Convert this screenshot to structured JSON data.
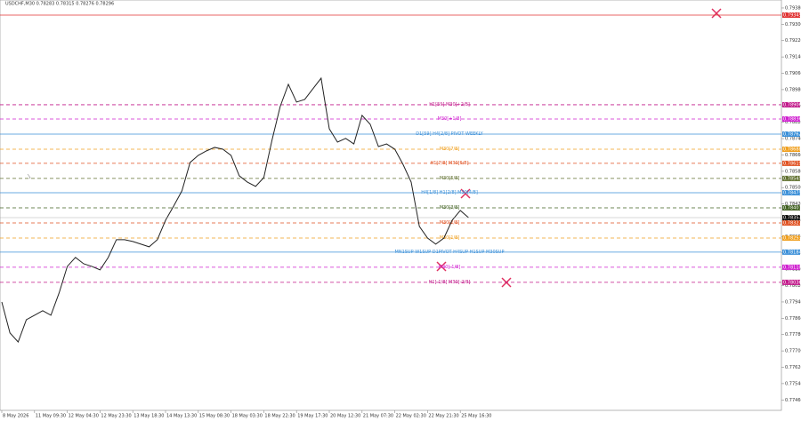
{
  "chart_data": {
    "type": "line",
    "title": "USDCHF,M30  0.78283 0.78315 0.78276 0.78296",
    "categories": [
      "8 May 2026",
      null,
      null,
      null,
      "11 May 09:30",
      null,
      null,
      null,
      "12 May 04:30",
      null,
      null,
      null,
      "12 May 23:30",
      null,
      null,
      null,
      "13 May 18:30",
      null,
      null,
      null,
      "14 May 13:30",
      null,
      null,
      null,
      "15 May 08:30",
      null,
      null,
      null,
      "18 May 03:30",
      null,
      null,
      null,
      "18 May 22:30",
      null,
      null,
      null,
      "19 May 17:30",
      null,
      null,
      null,
      "20 May 12:30",
      null,
      null,
      null,
      "21 May 07:30",
      null,
      null,
      null,
      "22 May 02:30",
      null,
      null,
      null,
      "22 May 21:30",
      null,
      null,
      null,
      "25 May 16:30",
      null
    ],
    "series": [
      {
        "color": "#222222",
        "values": [
          0.7794,
          0.77788,
          0.77744,
          0.77853,
          0.77875,
          0.77897,
          0.77875,
          0.77984,
          0.78114,
          0.78158,
          0.78127,
          0.78114,
          0.78097,
          0.78158,
          0.78245,
          0.78245,
          0.78236,
          0.78223,
          0.7821,
          0.78245,
          0.7834,
          0.7841,
          0.78484,
          0.78623,
          0.78658,
          0.7868,
          0.78697,
          0.78688,
          0.78658,
          0.78558,
          0.78527,
          0.78506,
          0.78549,
          0.78732,
          0.78897,
          0.79006,
          0.78919,
          0.78932,
          0.78984,
          0.79036,
          0.78788,
          0.78723,
          0.78741,
          0.78714,
          0.78854,
          0.7881,
          0.78701,
          0.78714,
          0.78688,
          0.78614,
          0.78527,
          0.7831,
          0.78253,
          0.78223,
          0.78253,
          0.7834,
          0.78388,
          0.78353
        ]
      }
    ],
    "ylim": [
      0.77409,
      0.79419
    ],
    "yticks": [
      {
        "value": 0.7746,
        "label": "0.77460"
      },
      {
        "value": 0.7754,
        "label": "0.77540"
      },
      {
        "value": 0.7762,
        "label": "0.77620"
      },
      {
        "value": 0.777,
        "label": "0.77700"
      },
      {
        "value": 0.7778,
        "label": "0.77780"
      },
      {
        "value": 0.7786,
        "label": "0.77860"
      },
      {
        "value": 0.7794,
        "label": "0.77940"
      },
      {
        "value": 0.7802,
        "label": "0.78020"
      },
      {
        "value": 0.781,
        "label": "0.78100"
      },
      {
        "value": 0.7818,
        "label": "0.78180"
      },
      {
        "value": 0.7826,
        "label": "0.78260"
      },
      {
        "value": 0.7834,
        "label": "0.78340"
      },
      {
        "value": 0.7842,
        "label": "0.78420"
      },
      {
        "value": 0.785,
        "label": "0.78500"
      },
      {
        "value": 0.7858,
        "label": "0.78580"
      },
      {
        "value": 0.7866,
        "label": "0.78660"
      },
      {
        "value": 0.7874,
        "label": "0.78740"
      },
      {
        "value": 0.7882,
        "label": "0.78820"
      },
      {
        "value": 0.789,
        "label": "0.78900"
      },
      {
        "value": 0.7898,
        "label": "0.78980"
      },
      {
        "value": 0.7906,
        "label": "0.79060"
      },
      {
        "value": 0.7914,
        "label": "0.79140"
      },
      {
        "value": 0.7922,
        "label": "0.79220"
      },
      {
        "value": 0.793,
        "label": "0.79300"
      },
      {
        "value": 0.7938,
        "label": "0.79380"
      }
    ],
    "grid": false,
    "levels": [
      {
        "price": 0.79345,
        "price_label": "0.79345",
        "color": "#e03030",
        "style": "solid"
      },
      {
        "text": "H1[59] M30[+2/8]",
        "price": 0.78906,
        "price_label": "0.78906",
        "color": "#c2188a",
        "style": "dashed"
      },
      {
        "text": "M30[+1/8]",
        "price": 0.78836,
        "price_label": "0.78836",
        "color": "#d020d0",
        "style": "dashed"
      },
      {
        "text": "D1[59] H4[2/8] PIVOT WEEKLY",
        "price": 0.78762,
        "price_label": "0.78762",
        "color": "#3a8fd8",
        "style": "solid"
      },
      {
        "text": "M30[7/8]",
        "price": 0.78688,
        "price_label": "0.78688",
        "color": "#f0a020",
        "style": "dashed"
      },
      {
        "text": "H1[7/8] M30[6/8]",
        "price": 0.78619,
        "price_label": "0.78619",
        "color": "#e05020",
        "style": "dashed"
      },
      {
        "text": "M30[5/8]",
        "price": 0.78545,
        "price_label": "0.78545",
        "color": "#607030",
        "style": "dashed"
      },
      {
        "text": "H4[1/8] H1[2/8] M30[4/8]",
        "price": 0.78475,
        "price_label": "0.78475",
        "color": "#3a8fd8",
        "style": "solid"
      },
      {
        "text": "M30[3/8]",
        "price": 0.78401,
        "price_label": "0.78401",
        "color": "#406020",
        "style": "dashed"
      },
      {
        "text": "M30[2/8]",
        "price": 0.78327,
        "price_label": "0.78327",
        "color": "#e05020",
        "style": "dashed"
      },
      {
        "text": "M30[1/8]",
        "price": 0.78253,
        "price_label": "0.78253",
        "color": "#f0a020",
        "style": "dashed"
      },
      {
        "text": "MN1SUP W1SUP D1PIVOT H4SUP H1SUP M30SUP",
        "price": 0.78184,
        "price_label": "0.78184",
        "color": "#3a8fd8",
        "style": "solid"
      },
      {
        "text": "M30[-1/8]",
        "price": 0.7811,
        "price_label": "0.78110",
        "color": "#d020d0",
        "style": "dashed"
      },
      {
        "text": "H1[-1/8] M30[-2/8]",
        "price": 0.78036,
        "price_label": "0.78036",
        "color": "#c2188a",
        "style": "dashed"
      }
    ],
    "last_price": 0.78353,
    "last_price_label": "0.78353"
  }
}
